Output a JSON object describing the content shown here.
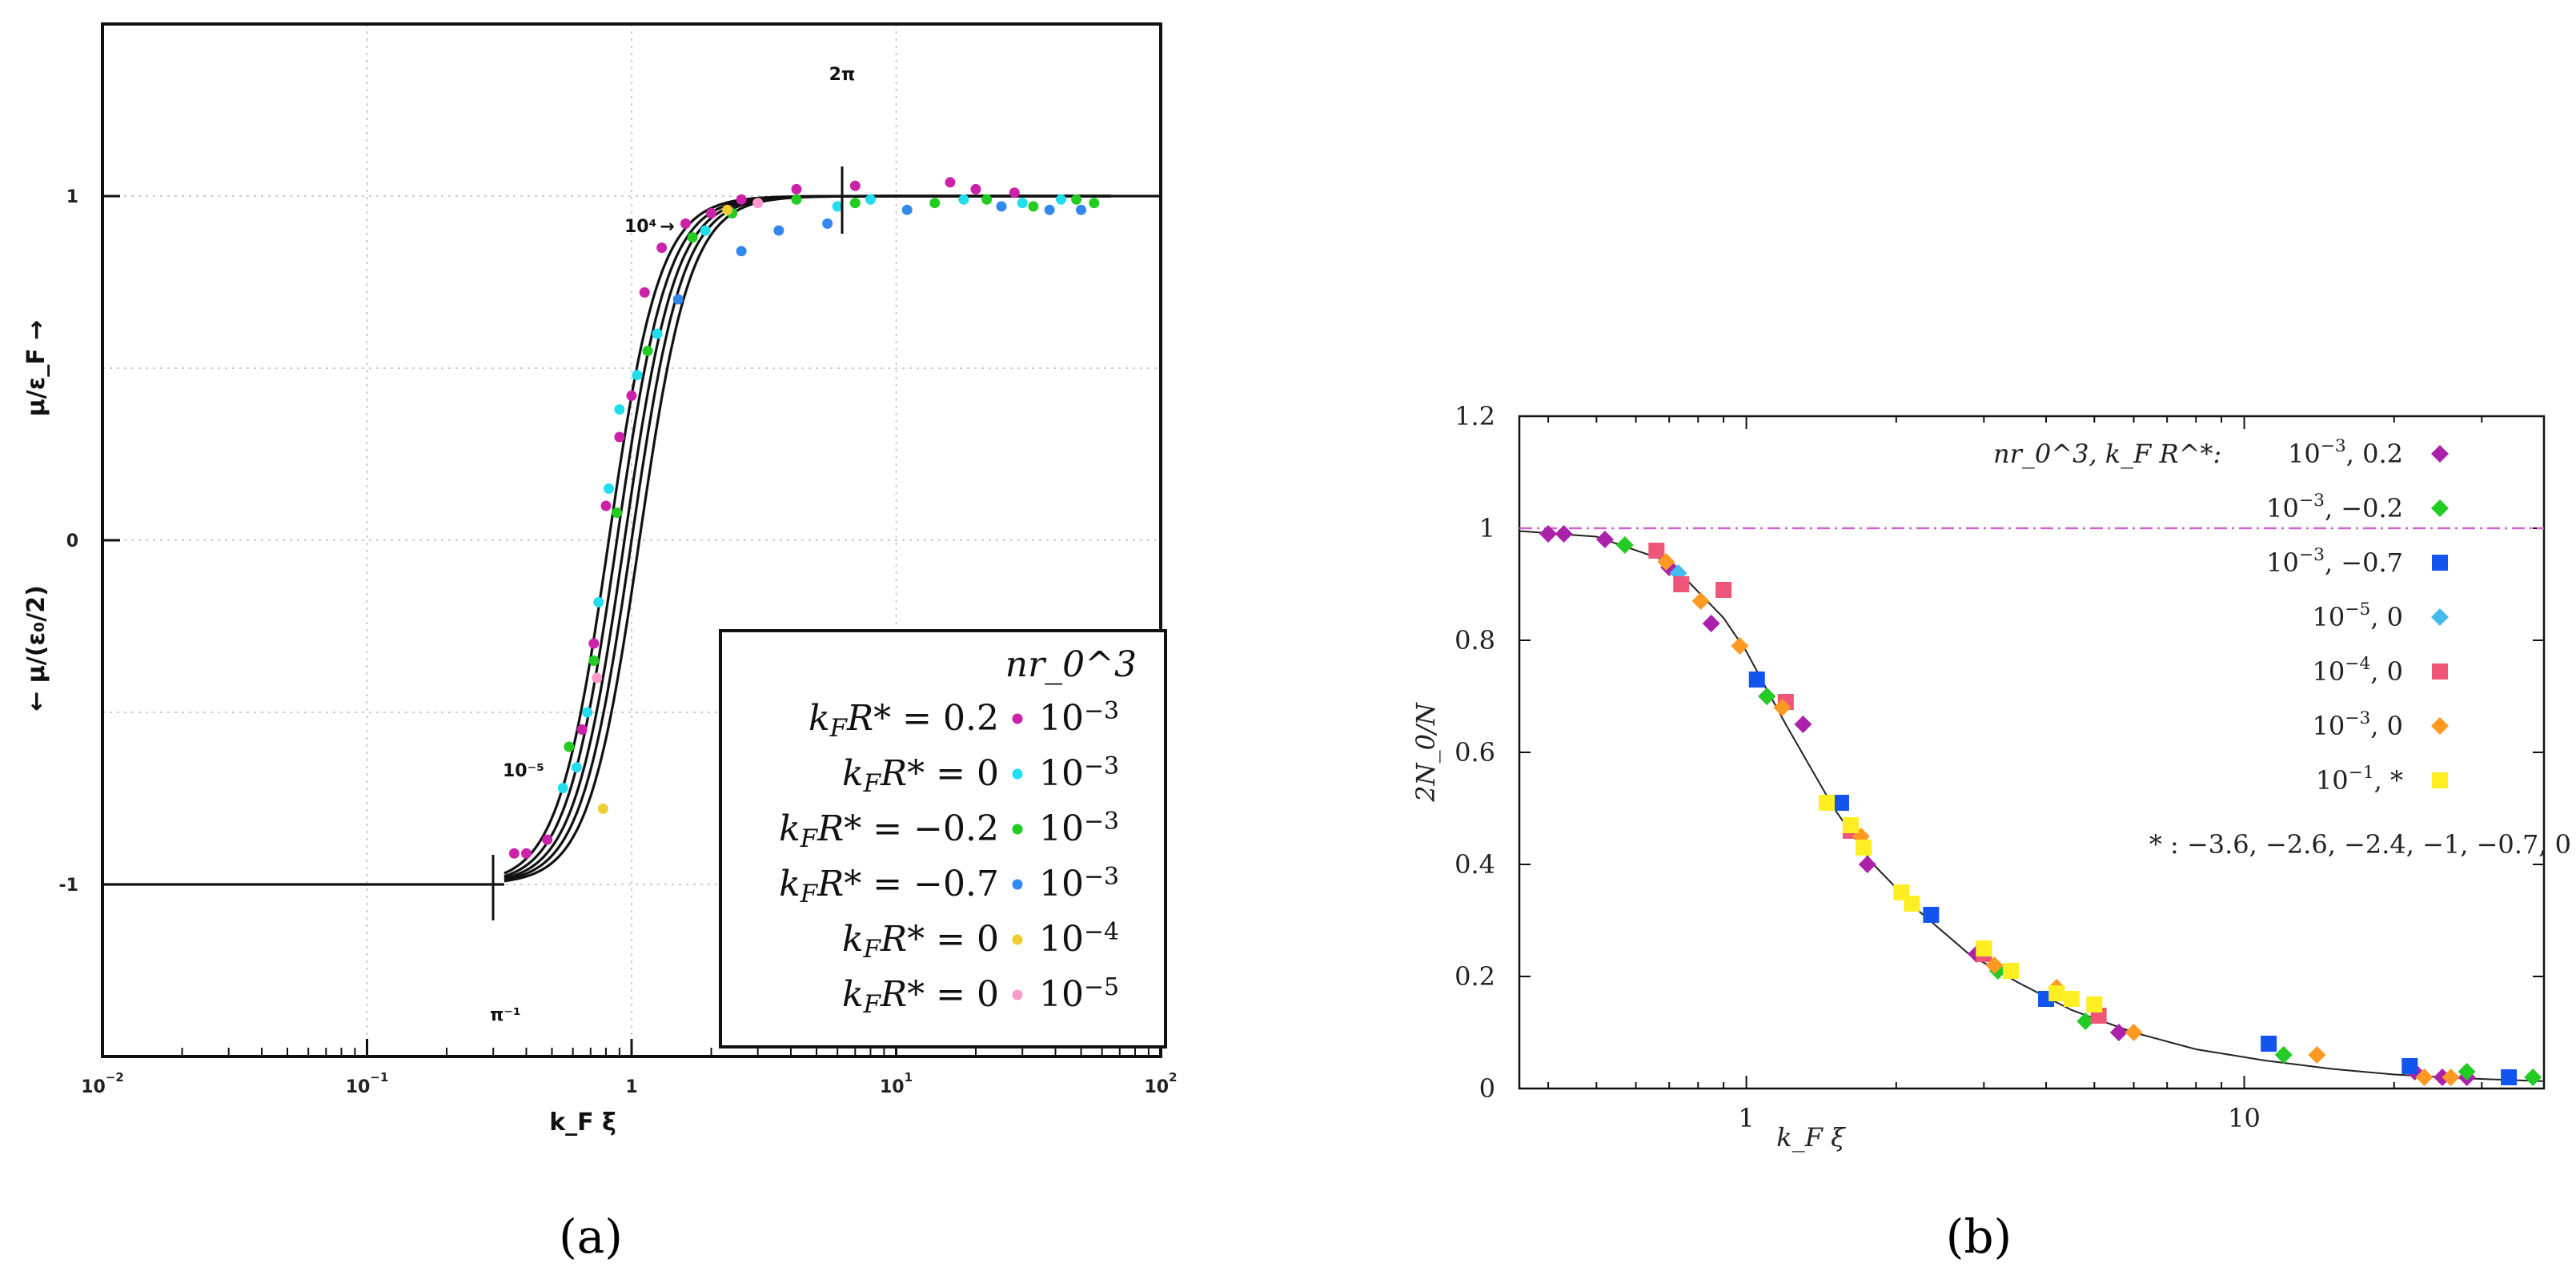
{
  "figure_captions": {
    "a": "(a)",
    "b": "(b)"
  },
  "chart_data": [
    {
      "id": "a",
      "type": "line",
      "xscale": "log",
      "xlim": [
        0.01,
        100
      ],
      "ylim": [
        -1.5,
        1.5
      ],
      "xlabel": "k_F ξ",
      "ylabel_lower": "← μ/(ε₀/2)",
      "ylabel_upper": "μ/ε_F →",
      "x_ticks": [
        0.01,
        0.1,
        1,
        10,
        100
      ],
      "x_tick_labels": [
        "10^-2",
        "10^-1",
        "1",
        "10^1",
        "10^2"
      ],
      "y_ticks": [
        -1,
        0,
        1
      ],
      "y_tick_labels": [
        "-1",
        "0",
        "1"
      ],
      "grid": true,
      "annotations": {
        "two_pi": "2π",
        "pi_inv": "π⁻¹",
        "ten4": "10⁴",
        "ten_m5": "10⁻⁵"
      },
      "legend_header": "nr_0^3",
      "legend_placement": "bottom-right",
      "curve_centers": [
        0.82,
        0.88,
        0.94,
        1.0,
        1.07
      ],
      "series": [
        {
          "name": "k_F R* = 0.2",
          "density": "10^-3",
          "color": "#cc22aa",
          "x": [
            0.36,
            0.4,
            0.48,
            0.65,
            0.72,
            0.8,
            0.9,
            1.0,
            1.12,
            1.3,
            1.6,
            2.0,
            2.6,
            4.2,
            7.0,
            16,
            20,
            28
          ],
          "y": [
            -0.91,
            -0.91,
            -0.87,
            -0.55,
            -0.3,
            0.1,
            0.3,
            0.42,
            0.72,
            0.85,
            0.92,
            0.95,
            0.99,
            1.02,
            1.03,
            1.04,
            1.02,
            1.01
          ]
        },
        {
          "name": "k_F R* = 0",
          "density": "10^-3",
          "color": "#22ddee",
          "x": [
            0.55,
            0.62,
            0.68,
            0.75,
            0.82,
            0.9,
            1.05,
            1.25,
            1.9,
            6.0,
            8.0,
            18,
            30,
            42
          ],
          "y": [
            -0.72,
            -0.66,
            -0.5,
            -0.18,
            0.15,
            0.38,
            0.48,
            0.6,
            0.9,
            0.97,
            0.99,
            0.99,
            0.98,
            0.99
          ]
        },
        {
          "name": "k_F R* = -0.2",
          "density": "10^-3",
          "color": "#22cc22",
          "x": [
            0.58,
            0.72,
            0.88,
            1.15,
            1.7,
            2.4,
            4.2,
            7.0,
            14,
            22,
            33,
            48,
            56
          ],
          "y": [
            -0.6,
            -0.35,
            0.08,
            0.55,
            0.88,
            0.95,
            0.99,
            0.98,
            0.98,
            0.99,
            0.97,
            0.99,
            0.98
          ]
        },
        {
          "name": "k_F R* = -0.7",
          "density": "10^-3",
          "color": "#3388ee",
          "x": [
            1.5,
            2.6,
            3.6,
            5.5,
            11,
            25,
            38,
            50
          ],
          "y": [
            0.7,
            0.84,
            0.9,
            0.92,
            0.96,
            0.97,
            0.96,
            0.96
          ]
        },
        {
          "name": "k_F R* = 0",
          "density": "10^-4",
          "color": "#eecc33",
          "x": [
            0.78,
            2.3
          ],
          "y": [
            -0.78,
            0.96
          ]
        },
        {
          "name": "k_F R* = 0",
          "density": "10^-5",
          "color": "#ff99cc",
          "x": [
            0.74,
            3.0
          ],
          "y": [
            -0.4,
            0.98
          ]
        }
      ]
    },
    {
      "id": "b",
      "type": "scatter",
      "xscale": "log",
      "xlim": [
        0.35,
        40
      ],
      "ylim": [
        0,
        1.2
      ],
      "xlabel": "k_F ξ",
      "ylabel": "2N_0/N",
      "x_ticks": [
        1,
        10
      ],
      "x_tick_labels": [
        "1",
        "10"
      ],
      "y_ticks": [
        0,
        0.2,
        0.4,
        0.6,
        0.8,
        1,
        1.2
      ],
      "y_tick_labels": [
        "0",
        "0.2",
        "0.4",
        "0.6",
        "0.8",
        "1",
        "1.2"
      ],
      "reference_line": 1,
      "legend_header": "nr_0^3, k_F R^*:",
      "legend_placement": "top-right",
      "legend_footnote": "* : −3.6, −2.6, −2.4, −1, −0.7, 0",
      "series": [
        {
          "name": "10^-3, 0.2",
          "label": "10^{-3}, 0.2",
          "marker": "diamond",
          "color": "#aa22aa",
          "x": [
            0.4,
            0.43,
            0.52,
            0.7,
            0.85,
            1.1,
            1.3,
            1.75,
            2.9,
            5.6,
            22,
            25,
            28
          ],
          "y": [
            0.99,
            0.99,
            0.98,
            0.93,
            0.83,
            0.7,
            0.65,
            0.4,
            0.24,
            0.1,
            0.03,
            0.02,
            0.02
          ]
        },
        {
          "name": "10^-3, -0.2",
          "label": "10^{-3}, −0.2",
          "marker": "diamond",
          "color": "#22cc22",
          "x": [
            0.57,
            1.1,
            3.2,
            4.8,
            12,
            28,
            38
          ],
          "y": [
            0.97,
            0.7,
            0.21,
            0.12,
            0.06,
            0.03,
            0.02
          ]
        },
        {
          "name": "10^-3, -0.7",
          "label": "10^{-3}, −0.7",
          "marker": "square",
          "color": "#1155ee",
          "x": [
            1.05,
            1.55,
            2.35,
            4.0,
            11.2,
            21.5,
            34
          ],
          "y": [
            0.73,
            0.51,
            0.31,
            0.16,
            0.08,
            0.04,
            0.02
          ]
        },
        {
          "name": "10^-5, 0",
          "label": "10^{-5}, 0",
          "marker": "diamond",
          "color": "#44bbee",
          "x": [
            0.73
          ],
          "y": [
            0.92
          ]
        },
        {
          "name": "10^-4, 0",
          "label": "10^{-4}, 0",
          "marker": "square",
          "color": "#ee5577",
          "x": [
            0.66,
            0.74,
            0.9,
            1.2,
            1.62,
            3.0,
            5.1
          ],
          "y": [
            0.96,
            0.9,
            0.89,
            0.69,
            0.46,
            0.24,
            0.13
          ]
        },
        {
          "name": "10^-3, 0",
          "label": "10^{-3}, 0",
          "marker": "diamond",
          "color": "#ff9922",
          "x": [
            0.69,
            0.81,
            0.97,
            1.18,
            1.7,
            3.15,
            4.2,
            6.0,
            14,
            23,
            26
          ],
          "y": [
            0.94,
            0.87,
            0.79,
            0.68,
            0.45,
            0.22,
            0.18,
            0.1,
            0.06,
            0.02,
            0.02
          ]
        },
        {
          "name": "10^-1, *",
          "label": "10^{-1}, *",
          "marker": "square",
          "color": "#ffee22",
          "x": [
            1.45,
            1.62,
            1.72,
            2.05,
            2.15,
            3.0,
            3.4,
            4.2,
            4.5,
            5.0
          ],
          "y": [
            0.51,
            0.47,
            0.43,
            0.35,
            0.33,
            0.25,
            0.21,
            0.17,
            0.16,
            0.15
          ]
        }
      ],
      "fit_curve_x": [
        0.35,
        0.5,
        0.7,
        0.9,
        1.0,
        1.2,
        1.5,
        1.8,
        2.2,
        2.8,
        3.5,
        4.5,
        6.0,
        8.0,
        11.0,
        15.0,
        20.0,
        28.0,
        40.0
      ],
      "fit_curve_y": [
        0.995,
        0.985,
        0.94,
        0.84,
        0.78,
        0.65,
        0.5,
        0.4,
        0.32,
        0.24,
        0.19,
        0.14,
        0.1,
        0.07,
        0.05,
        0.035,
        0.025,
        0.018,
        0.013
      ]
    }
  ]
}
